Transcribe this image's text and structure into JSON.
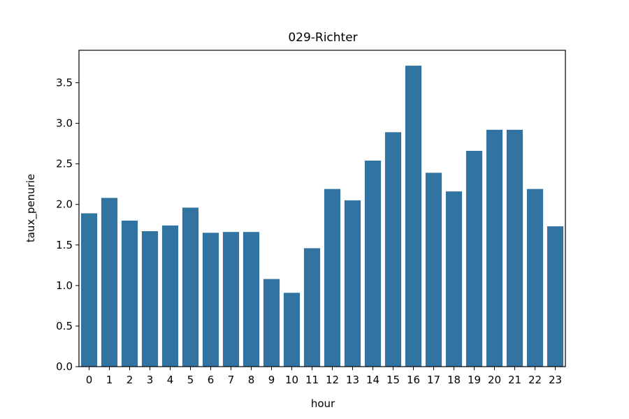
{
  "chart_data": {
    "type": "bar",
    "title": "029-Richter",
    "xlabel": "hour",
    "ylabel": "taux_penurie",
    "categories": [
      "0",
      "1",
      "2",
      "3",
      "4",
      "5",
      "6",
      "7",
      "8",
      "9",
      "10",
      "11",
      "12",
      "13",
      "14",
      "15",
      "16",
      "17",
      "18",
      "19",
      "20",
      "21",
      "22",
      "23"
    ],
    "values": [
      1.89,
      2.08,
      1.8,
      1.67,
      1.74,
      1.96,
      1.65,
      1.66,
      1.66,
      1.08,
      0.91,
      1.46,
      2.19,
      2.05,
      2.54,
      2.89,
      3.71,
      2.39,
      2.16,
      2.66,
      2.92,
      2.92,
      2.19,
      1.73
    ],
    "ylim": [
      0,
      3.9
    ],
    "yticks": [
      "0.0",
      "0.5",
      "1.0",
      "1.5",
      "2.0",
      "2.5",
      "3.0",
      "3.5"
    ],
    "bar_color": "#3274a1",
    "grid": false,
    "legend": "none"
  }
}
